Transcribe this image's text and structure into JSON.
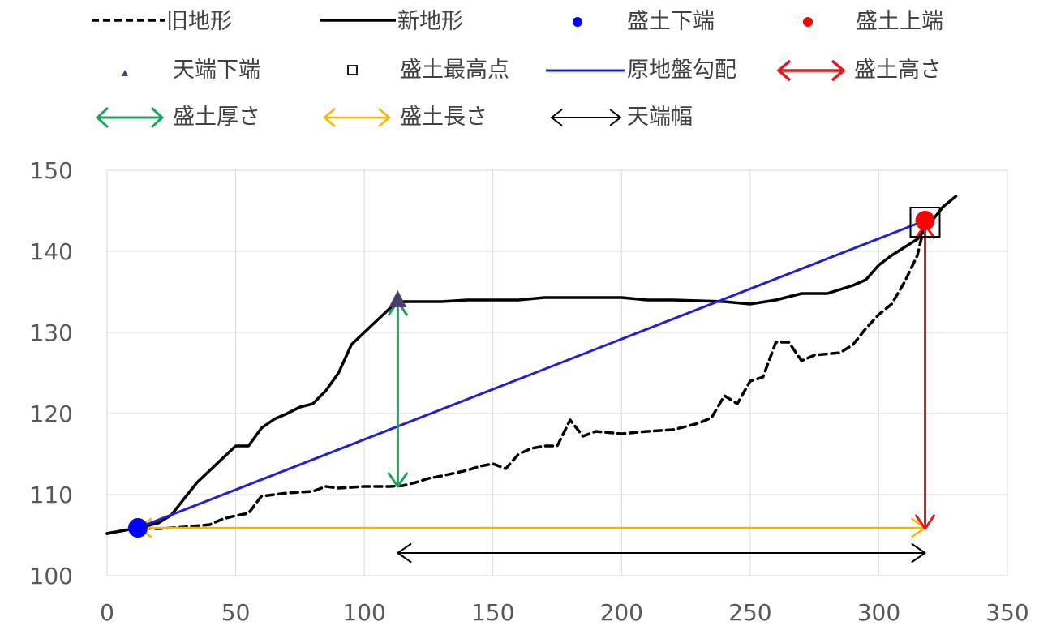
{
  "chart_data": {
    "type": "line",
    "xlim": [
      0,
      350
    ],
    "ylim": [
      100,
      150
    ],
    "x_ticks": [
      "0",
      "50",
      "100",
      "150",
      "200",
      "250",
      "300",
      "350"
    ],
    "y_ticks": [
      "100",
      "110",
      "120",
      "130",
      "140",
      "150"
    ],
    "grid": true,
    "legend_position": "top",
    "legend": {
      "old_terrain": "旧地形",
      "new_terrain": "新地形",
      "fill_bottom_end": "盛土下端",
      "fill_top_end": "盛土上端",
      "crest_bottom_end": "天端下端",
      "fill_highest_point": "盛土最高点",
      "ground_slope": "原地盤勾配",
      "fill_height": "盛土高さ",
      "fill_thickness": "盛土厚さ",
      "fill_length": "盛土長さ",
      "crest_width": "天端幅"
    },
    "colors": {
      "old_terrain": "#000000",
      "new_terrain": "#000000",
      "fill_bottom_end": "#0000ff",
      "fill_top_end": "#ff0000",
      "crest_bottom_end": "#4a3f6b",
      "fill_highest_point": "#000000",
      "ground_slope": "#1f1fdc",
      "fill_height": "#e31a1c",
      "fill_thickness": "#1aa35a",
      "fill_length": "#f5b800",
      "crest_width": "#000000"
    },
    "series": [
      {
        "key": "old_terrain",
        "name": "旧地形",
        "style": "dashed",
        "points": [
          [
            0,
            105.2
          ],
          [
            12,
            105.9
          ],
          [
            20,
            105.8
          ],
          [
            30,
            106.0
          ],
          [
            40,
            106.3
          ],
          [
            45,
            107.0
          ],
          [
            50,
            107.4
          ],
          [
            55,
            107.7
          ],
          [
            60,
            109.8
          ],
          [
            65,
            110.0
          ],
          [
            70,
            110.2
          ],
          [
            80,
            110.4
          ],
          [
            85,
            111.0
          ],
          [
            90,
            110.8
          ],
          [
            100,
            111.0
          ],
          [
            110,
            111.0
          ],
          [
            115,
            111.1
          ],
          [
            120,
            111.5
          ],
          [
            125,
            112.0
          ],
          [
            130,
            112.3
          ],
          [
            140,
            113.0
          ],
          [
            145,
            113.5
          ],
          [
            150,
            113.8
          ],
          [
            155,
            113.2
          ],
          [
            160,
            115.0
          ],
          [
            165,
            115.7
          ],
          [
            170,
            116.0
          ],
          [
            175,
            116.0
          ],
          [
            180,
            119.2
          ],
          [
            185,
            117.2
          ],
          [
            190,
            117.8
          ],
          [
            200,
            117.5
          ],
          [
            210,
            117.8
          ],
          [
            220,
            118.0
          ],
          [
            230,
            118.8
          ],
          [
            235,
            119.5
          ],
          [
            240,
            122.2
          ],
          [
            245,
            121.2
          ],
          [
            250,
            124.0
          ],
          [
            255,
            124.5
          ],
          [
            260,
            128.8
          ],
          [
            265,
            128.8
          ],
          [
            270,
            126.5
          ],
          [
            275,
            127.2
          ],
          [
            285,
            127.5
          ],
          [
            290,
            128.5
          ],
          [
            295,
            130.5
          ],
          [
            300,
            132.2
          ],
          [
            305,
            133.5
          ],
          [
            310,
            136.2
          ],
          [
            315,
            139.5
          ],
          [
            318,
            143.5
          ]
        ]
      },
      {
        "key": "new_terrain",
        "name": "新地形",
        "style": "solid",
        "points": [
          [
            0,
            105.2
          ],
          [
            12,
            105.9
          ],
          [
            20,
            106.5
          ],
          [
            25,
            107.5
          ],
          [
            30,
            109.5
          ],
          [
            35,
            111.5
          ],
          [
            40,
            113.0
          ],
          [
            45,
            114.5
          ],
          [
            50,
            116.0
          ],
          [
            55,
            116.0
          ],
          [
            60,
            118.2
          ],
          [
            65,
            119.3
          ],
          [
            70,
            120.0
          ],
          [
            75,
            120.8
          ],
          [
            80,
            121.2
          ],
          [
            85,
            122.8
          ],
          [
            90,
            125.0
          ],
          [
            95,
            128.5
          ],
          [
            100,
            130.0
          ],
          [
            105,
            131.5
          ],
          [
            110,
            133.0
          ],
          [
            115,
            133.8
          ],
          [
            120,
            133.8
          ],
          [
            130,
            133.8
          ],
          [
            140,
            134.0
          ],
          [
            160,
            134.0
          ],
          [
            170,
            134.3
          ],
          [
            200,
            134.3
          ],
          [
            210,
            134.0
          ],
          [
            220,
            134.0
          ],
          [
            240,
            133.8
          ],
          [
            250,
            133.5
          ],
          [
            260,
            134.0
          ],
          [
            270,
            134.8
          ],
          [
            280,
            134.8
          ],
          [
            290,
            135.8
          ],
          [
            295,
            136.5
          ],
          [
            300,
            138.3
          ],
          [
            305,
            139.5
          ],
          [
            310,
            140.5
          ],
          [
            315,
            141.5
          ],
          [
            320,
            143.5
          ],
          [
            325,
            145.5
          ],
          [
            330,
            146.8
          ]
        ]
      },
      {
        "key": "ground_slope",
        "name": "原地盤勾配",
        "style": "solid",
        "points": [
          [
            12,
            105.9
          ],
          [
            318,
            143.8
          ]
        ]
      }
    ],
    "points": [
      {
        "key": "fill_bottom_end",
        "name": "盛土下端",
        "x": 12,
        "y": 105.9,
        "marker": "circle"
      },
      {
        "key": "fill_top_end",
        "name": "盛土上端",
        "x": 318,
        "y": 143.8,
        "marker": "circle"
      },
      {
        "key": "crest_bottom_end",
        "name": "天端下端",
        "x": 113,
        "y": 134.0,
        "marker": "triangle"
      },
      {
        "key": "fill_highest_point",
        "name": "盛土最高点",
        "x": 318,
        "y": 143.6,
        "marker": "square"
      }
    ],
    "arrows": [
      {
        "key": "fill_height",
        "name": "盛土高さ",
        "x1": 318,
        "y1": 143.3,
        "x2": 318,
        "y2": 105.8
      },
      {
        "key": "fill_thickness",
        "name": "盛土厚さ",
        "x1": 113,
        "y1": 133.8,
        "x2": 113,
        "y2": 111.0
      },
      {
        "key": "fill_length",
        "name": "盛土長さ",
        "x1": 12,
        "y1": 105.9,
        "x2": 318,
        "y2": 105.9
      },
      {
        "key": "crest_width",
        "name": "天端幅",
        "x1": 113,
        "y1": 102.8,
        "x2": 318,
        "y2": 102.8
      }
    ]
  }
}
